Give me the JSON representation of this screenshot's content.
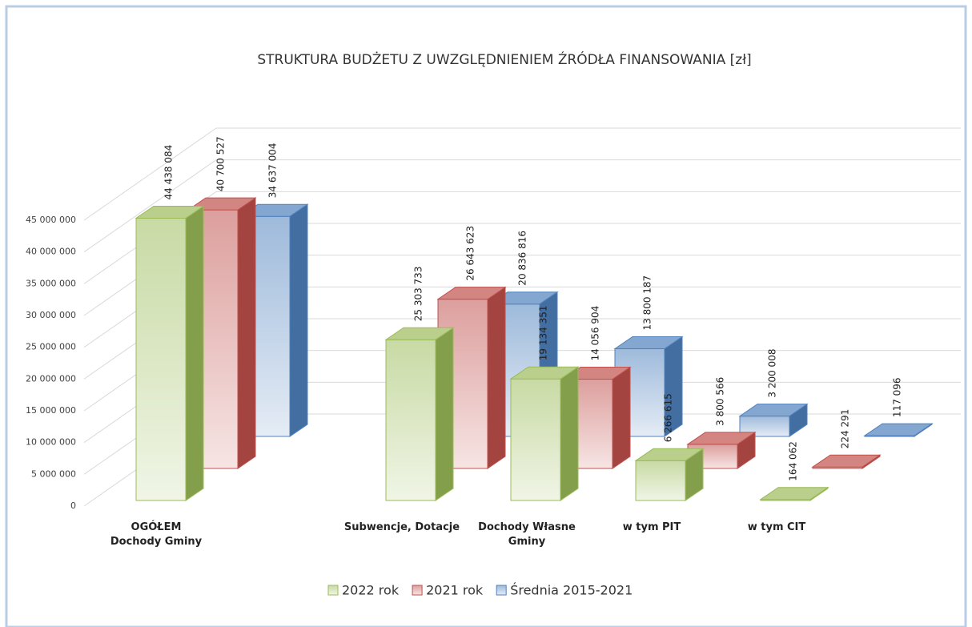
{
  "chart_data": {
    "type": "bar3d",
    "title": "STRUKTURA BUDŻETU Z UWZGLĘDNIENIEM ŹRÓDŁA FINANSOWANIA [zł]",
    "categories": [
      "OGÓŁEM Dochody Gminy",
      "Subwencje, Dotacje",
      "Dochody Własne Gminy",
      "w tym PIT",
      "w tym CIT"
    ],
    "series": [
      {
        "name": "2022 rok",
        "color": "#9bbb59",
        "values": [
          44438084,
          25303733,
          19134351,
          6266615,
          164062
        ],
        "value_labels": [
          "44 438 084",
          "25 303 733",
          "19 134 351",
          "6 266 615",
          "164 062"
        ]
      },
      {
        "name": "2021 rok",
        "color": "#c0504d",
        "values": [
          40700527,
          26643623,
          14056904,
          3800566,
          224291
        ],
        "value_labels": [
          "40 700 527",
          "26 643 623",
          "14 056 904",
          "3 800 566",
          "224 291"
        ]
      },
      {
        "name": "Średnia 2015-2021",
        "color": "#4f81bd",
        "values": [
          34637004,
          20836816,
          13800187,
          3200008,
          117096
        ],
        "value_labels": [
          "34 637 004",
          "20 836 816",
          "13 800 187",
          "3 200 008",
          "117 096"
        ]
      }
    ],
    "ylim": [
      0,
      45000000
    ],
    "yticks": [
      0,
      {
        "value": 5000000,
        "label": "5 000 000"
      },
      {
        "value": 10000000,
        "label": "10 000 000"
      },
      {
        "value": 15000000,
        "label": "15 000 000"
      },
      {
        "value": 20000000,
        "label": "20 000 000"
      },
      {
        "value": 25000000,
        "label": "25 000 000"
      },
      {
        "value": 30000000,
        "label": "30 000 000"
      },
      {
        "value": 35000000,
        "label": "35 000 000"
      },
      {
        "value": 40000000,
        "label": "40 000 000"
      },
      {
        "value": 45000000,
        "label": "45 000 000"
      }
    ],
    "grid": true,
    "legend": "bottom"
  }
}
